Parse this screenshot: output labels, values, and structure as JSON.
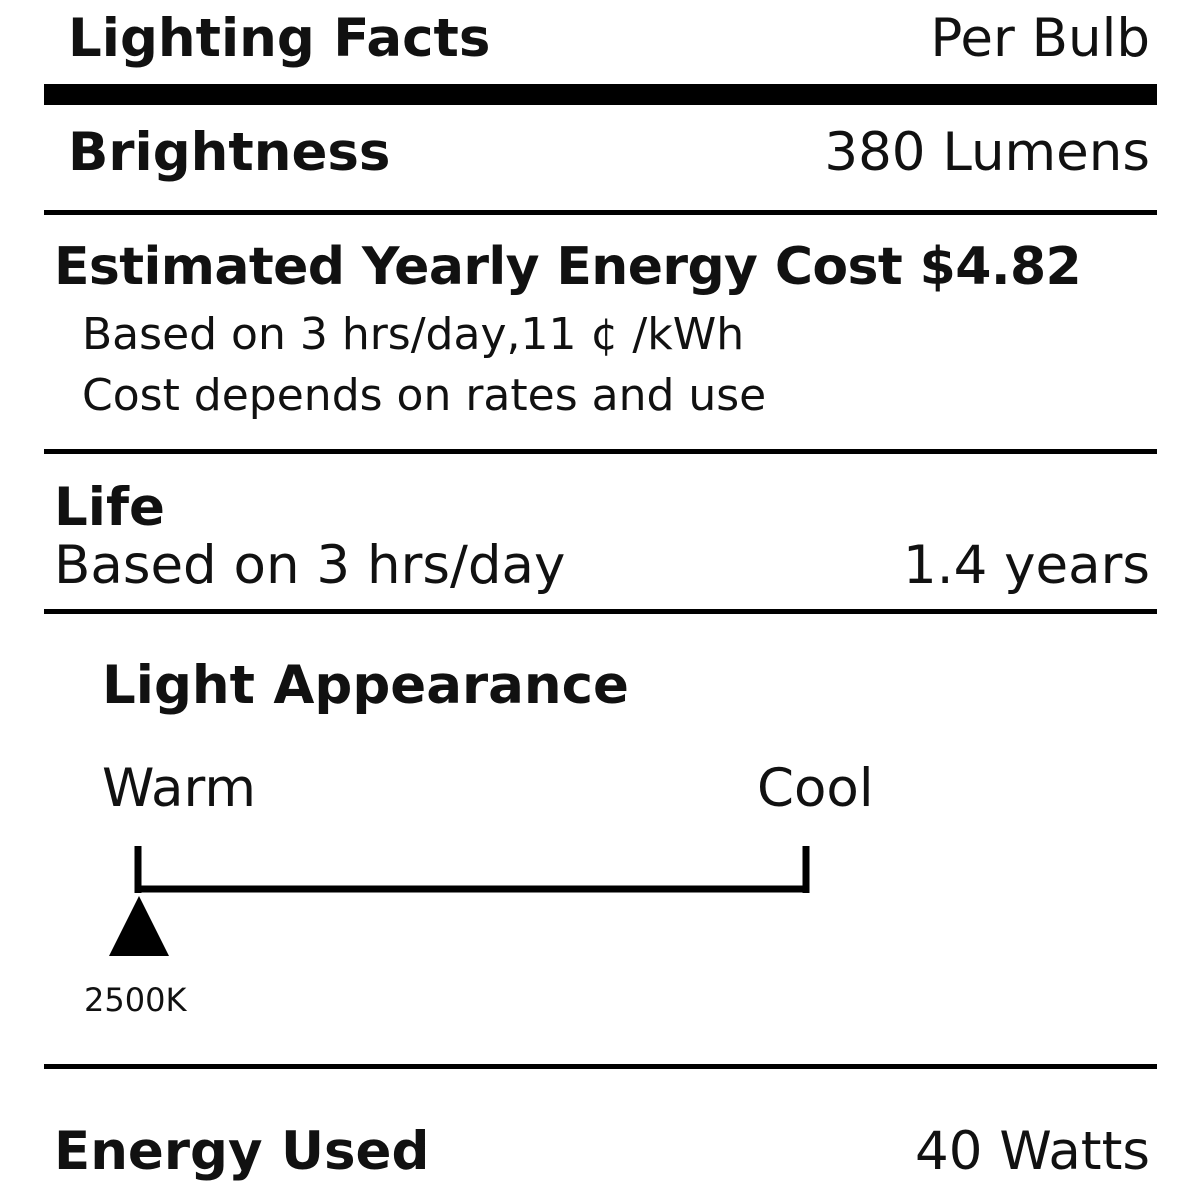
{
  "header": {
    "title": "Lighting Facts",
    "per": "Per Bulb"
  },
  "brightness": {
    "label": "Brightness",
    "value": "380 Lumens"
  },
  "cost": {
    "heading": "Estimated Yearly Energy Cost $4.82",
    "note1": "Based on 3 hrs/day,11 ¢ /kWh",
    "note2": "Cost depends on rates and use"
  },
  "life": {
    "label": "Life",
    "basis": "Based on 3 hrs/day",
    "value": "1.4 years"
  },
  "appearance": {
    "heading": "Light Appearance",
    "warm_label": "Warm",
    "cool_label": "Cool",
    "kelvin": "2500K",
    "position_fraction": 0
  },
  "energy": {
    "label": "Energy Used",
    "value": "40 Watts"
  }
}
